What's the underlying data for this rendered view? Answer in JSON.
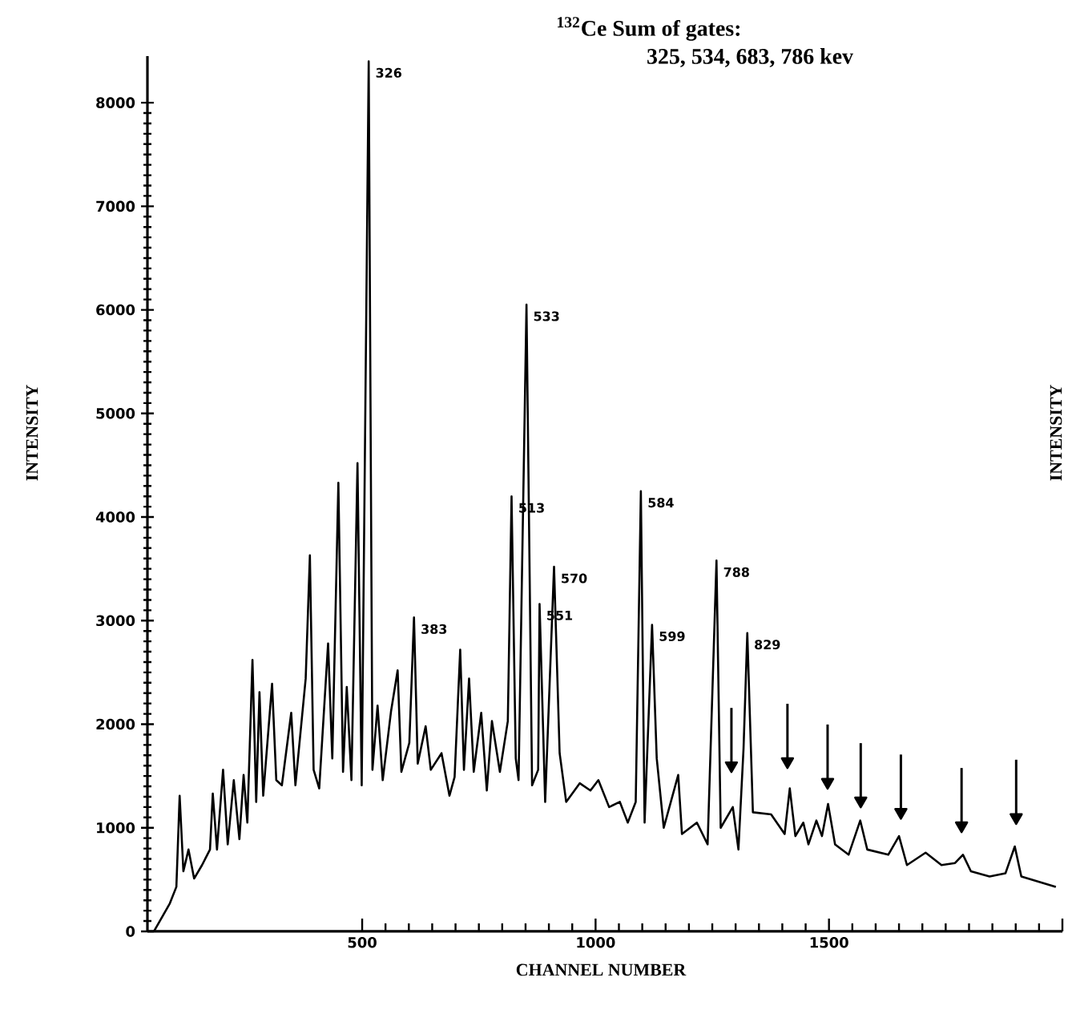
{
  "chart_data": {
    "type": "line",
    "title": "$^{132}$Ce   Sum of gates:",
    "subtitle": "325, 534, 683, 786 kev",
    "xlabel": "CHANNEL NUMBER",
    "ylabel": "INTENSITY",
    "y2label": "INTENSITY",
    "xlim": [
      40,
      2000
    ],
    "ylim": [
      0,
      8450
    ],
    "xticks": [
      500,
      1000,
      1500,
      {
        "value": 2000,
        "label": null
      }
    ],
    "yticks": [
      0,
      1000,
      2000,
      3000,
      4000,
      5000,
      6000,
      7000,
      8000
    ],
    "series": [
      {
        "color": "#000000",
        "x": [
          54,
          88,
          102,
          109,
          117,
          128,
          140,
          157,
          174,
          180,
          189,
          202,
          212,
          225,
          237,
          246,
          254,
          265,
          273,
          280,
          288,
          307,
          316,
          328,
          348,
          357,
          379,
          388,
          396,
          408,
          427,
          436,
          449,
          459,
          467,
          477,
          490,
          499,
          514,
          522,
          533,
          544,
          562,
          576,
          584,
          601,
          611,
          619,
          636,
          647,
          670,
          687,
          698,
          710,
          718,
          729,
          739,
          755,
          767,
          778,
          795,
          812,
          820,
          829,
          835,
          852,
          864,
          877,
          880,
          892,
          911,
          923,
          937,
          966,
          989,
          1006,
          1029,
          1052,
          1069,
          1086,
          1097,
          1105,
          1121,
          1131,
          1146,
          1177,
          1185,
          1217,
          1240,
          1259,
          1268,
          1294,
          1306,
          1317,
          1325,
          1337,
          1376,
          1405,
          1416,
          1428,
          1445,
          1456,
          1473,
          1485,
          1498,
          1513,
          1542,
          1567,
          1582,
          1627,
          1650,
          1667,
          1707,
          1741,
          1770,
          1787,
          1804,
          1844,
          1878,
          1898,
          1912,
          1986
        ],
        "values": [
          0,
          270,
          430,
          1310,
          580,
          790,
          510,
          640,
          790,
          1330,
          790,
          1560,
          840,
          1460,
          890,
          1510,
          1050,
          2620,
          1250,
          2310,
          1310,
          2390,
          1460,
          1410,
          2110,
          1410,
          2440,
          3630,
          1560,
          1380,
          2780,
          1670,
          4330,
          1540,
          2360,
          1460,
          4520,
          1410,
          8400,
          1560,
          2180,
          1460,
          2130,
          2520,
          1540,
          1820,
          3030,
          1620,
          1980,
          1560,
          1720,
          1310,
          1490,
          2720,
          1560,
          2440,
          1540,
          2110,
          1360,
          2030,
          1540,
          2030,
          4200,
          1670,
          1460,
          6050,
          1410,
          1560,
          3160,
          1250,
          3520,
          1720,
          1250,
          1430,
          1360,
          1460,
          1200,
          1250,
          1050,
          1250,
          4250,
          1050,
          2960,
          1670,
          1000,
          1510,
          940,
          1050,
          840,
          3580,
          1000,
          1200,
          790,
          1770,
          2880,
          1150,
          1130,
          940,
          1380,
          920,
          1050,
          840,
          1070,
          920,
          1230,
          840,
          740,
          1070,
          790,
          740,
          920,
          640,
          760,
          640,
          660,
          740,
          580,
          530,
          560,
          820,
          530,
          430
        ]
      },
      {
        "type": "scatter",
        "marker": "triangle",
        "color": "#000000",
        "x": [
          1291,
          1411,
          1497,
          1568,
          1654,
          1784,
          1901
        ],
        "values": [
          1600,
          1640,
          1440,
          1260,
          1150,
          1020,
          1100
        ]
      }
    ],
    "annotations": [
      {
        "text": "326",
        "x": 514,
        "y": 8400
      },
      {
        "text": "533",
        "x": 852,
        "y": 6050
      },
      {
        "text": "513",
        "x": 820,
        "y": 4200
      },
      {
        "text": "383",
        "x": 611,
        "y": 3030
      },
      {
        "text": "570",
        "x": 911,
        "y": 3520
      },
      {
        "text": "551",
        "x": 880,
        "y": 3160
      },
      {
        "text": "584",
        "x": 1097,
        "y": 4250
      },
      {
        "text": "599",
        "x": 1121,
        "y": 2960
      },
      {
        "text": "788",
        "x": 1259,
        "y": 3580
      },
      {
        "text": "829",
        "x": 1325,
        "y": 2880
      }
    ]
  }
}
